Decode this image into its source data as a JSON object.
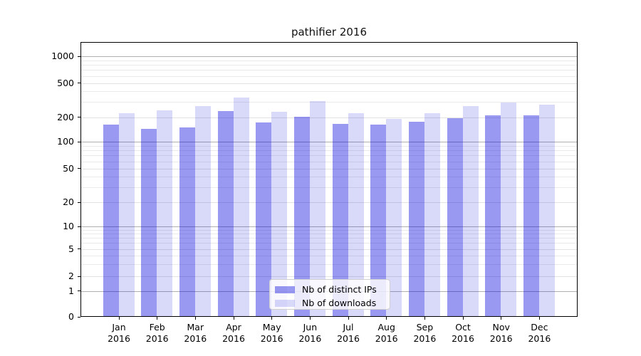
{
  "chart_data": {
    "type": "bar",
    "title": "pathifier 2016",
    "categories": [
      "Jan 2016",
      "Feb 2016",
      "Mar 2016",
      "Apr 2016",
      "May 2016",
      "Jun 2016",
      "Jul 2016",
      "Aug 2016",
      "Sep 2016",
      "Oct 2016",
      "Nov 2016",
      "Dec 2016"
    ],
    "x_tick_months": [
      "Jan",
      "Feb",
      "Mar",
      "Apr",
      "May",
      "Jun",
      "Jul",
      "Aug",
      "Sep",
      "Oct",
      "Nov",
      "Dec"
    ],
    "x_tick_year": "2016",
    "series": [
      {
        "name": "Nb of distinct IPs",
        "color": "#9999f1",
        "fill": "rgba(0,0,220,0.40)",
        "values": [
          160,
          142,
          148,
          230,
          170,
          200,
          163,
          158,
          173,
          190,
          205,
          205
        ]
      },
      {
        "name": "Nb of downloads",
        "color": "#d9d9fa",
        "fill": "rgba(0,0,220,0.15)",
        "values": [
          220,
          235,
          265,
          330,
          228,
          300,
          220,
          188,
          220,
          265,
          290,
          272
        ]
      }
    ],
    "y_axis": {
      "scale": "symlog",
      "ticks": [
        0,
        1,
        2,
        5,
        10,
        20,
        50,
        100,
        200,
        500,
        1000
      ],
      "tick_labels": [
        "0",
        "1",
        "2",
        "5",
        "10",
        "20",
        "50",
        "100",
        "200",
        "500",
        "1000"
      ],
      "ylim": [
        0,
        1100
      ]
    },
    "grid": {
      "shown": true,
      "which": "both"
    },
    "legend": {
      "entries": [
        "Nb of distinct IPs",
        "Nb of downloads"
      ],
      "location": "lower center inside"
    }
  },
  "colors": {
    "background": "#ffffff",
    "spine": "#000000",
    "grid_decade": "#b0b0b0",
    "grid_labeled": "#e2e2e2",
    "grid_minor": "#eaeaea",
    "bar_dark": "#9999f1",
    "bar_light": "#d9d9fa"
  }
}
